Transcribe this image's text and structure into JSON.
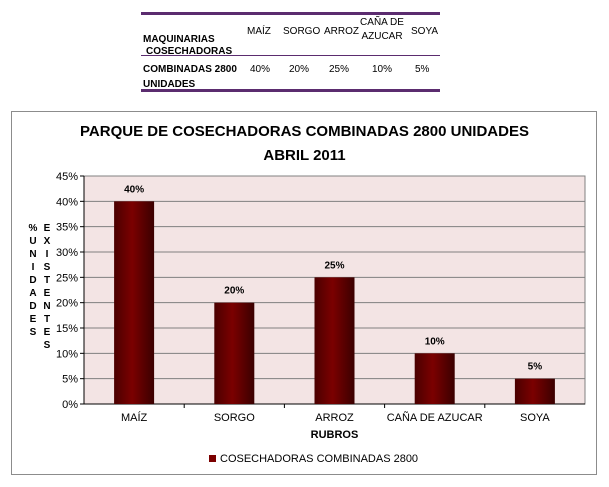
{
  "table": {
    "header": {
      "c0": "MAQUINARIAS",
      "c1": "MAÍZ",
      "c2": "SORGO",
      "c3": "ARROZ",
      "c4a": "CAÑA DE",
      "c4b": "AZUCAR",
      "c5": "SOYA"
    },
    "row": {
      "l1": "COSECHADORAS",
      "l2": "COMBINADAS 2800",
      "l3": "UNIDADES",
      "v1": "40%",
      "v2": "20%",
      "v3": "25%",
      "v4": "10%",
      "v5": "5%"
    }
  },
  "chart_data": {
    "type": "bar",
    "title_line1": "PARQUE DE COSECHADORAS COMBINADAS  2800 UNIDADES",
    "title_line2": "ABRIL 2011",
    "categories": [
      "MAÍZ",
      "SORGO",
      "ARROZ",
      "CAÑA DE AZUCAR",
      "SOYA"
    ],
    "series": [
      {
        "name": "COSECHADORAS COMBINADAS  2800",
        "values": [
          40,
          20,
          25,
          10,
          5
        ],
        "labels": [
          "40%",
          "20%",
          "25%",
          "10%",
          "5%"
        ]
      }
    ],
    "xlabel": "RUBROS",
    "ylabel_col1": "% UNIDADES",
    "ylabel_col2": "EXISTENTES",
    "ylim": [
      0,
      45
    ],
    "yticks": [
      "0%",
      "5%",
      "10%",
      "15%",
      "20%",
      "25%",
      "30%",
      "35%",
      "40%",
      "45%"
    ],
    "grid": true,
    "legend": "bottom",
    "colors": {
      "bar": "#7b0000",
      "plot_bg": "#f3e4e4",
      "grid": "#808080",
      "table_rule": "#5b2c6f"
    }
  }
}
